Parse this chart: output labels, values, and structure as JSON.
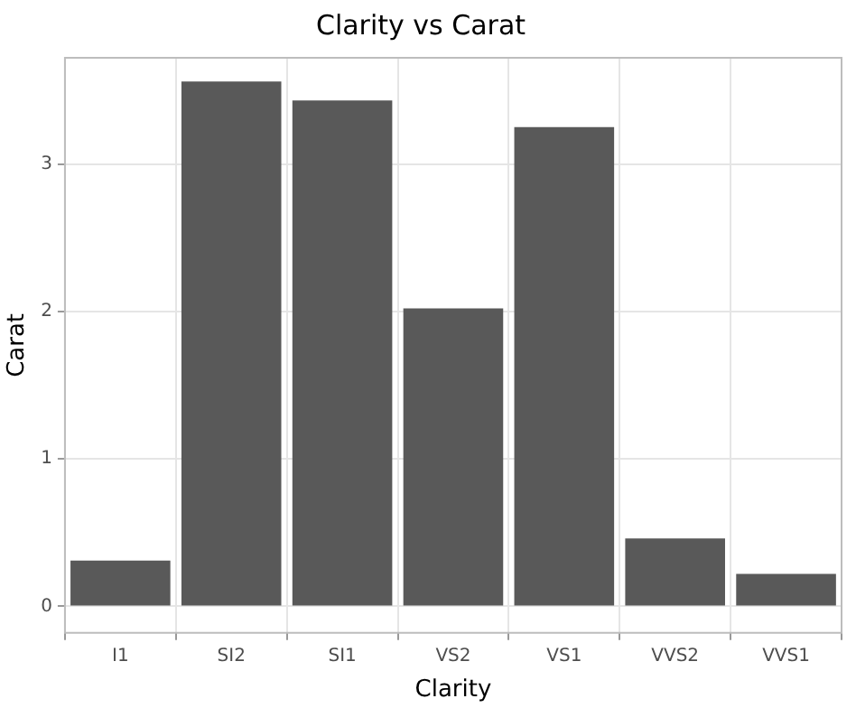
{
  "chart_data": {
    "type": "bar",
    "title": "Clarity vs Carat",
    "xlabel": "Clarity",
    "ylabel": "Carat",
    "categories": [
      "I1",
      "SI2",
      "SI1",
      "VS2",
      "VS1",
      "VVS2",
      "VVS1"
    ],
    "values": [
      0.31,
      3.56,
      3.43,
      2.02,
      3.25,
      0.46,
      0.22
    ],
    "color": "#595959",
    "ylim": [
      -0.18,
      3.72
    ],
    "yticks": [
      0,
      1,
      2,
      3
    ],
    "grid": true
  }
}
